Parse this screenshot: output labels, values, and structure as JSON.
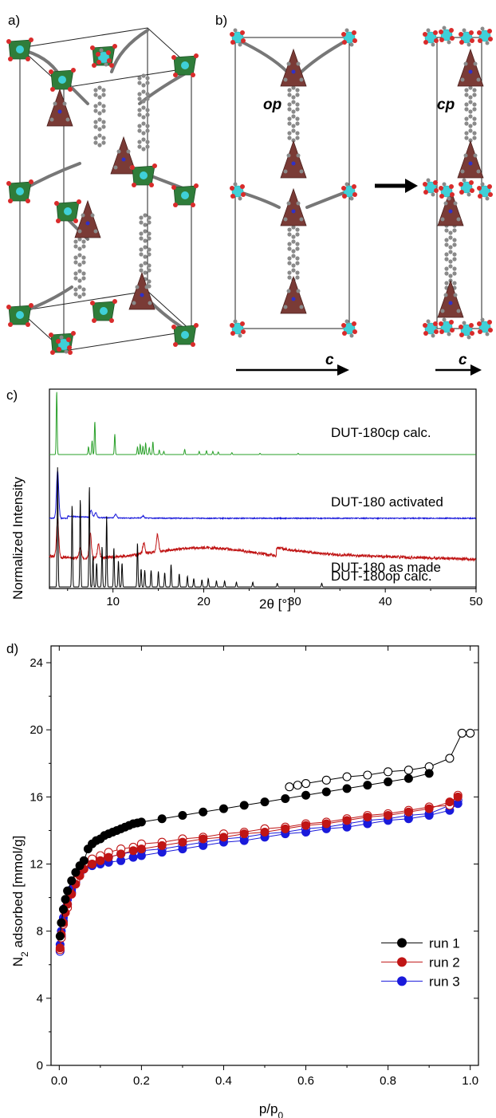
{
  "panels": {
    "a": "a)",
    "b": "b)",
    "c": "c)",
    "d": "d)"
  },
  "structure": {
    "label_op": "op",
    "label_cp": "cp",
    "axis_c_left": "c",
    "axis_c_right": "c",
    "colors": {
      "metal_node": "#3fd0d8",
      "oxygen": "#d92b2b",
      "carbon": "#8a8a8a",
      "polyhedron_green": "#2f7d3a",
      "polyhedron_brown": "#7a3b36"
    }
  },
  "chart_data": [
    {
      "type": "line",
      "title": "",
      "xlabel": "2θ [°]",
      "ylabel": "Normalized Intensity",
      "xlim": [
        3,
        50
      ],
      "xticks": [
        10,
        20,
        30,
        40,
        50
      ],
      "series": [
        {
          "name": "DUT-180cp calc.",
          "color": "#2aa02a",
          "peaks": [
            [
              3.8,
              1.0
            ],
            [
              7.3,
              0.12
            ],
            [
              7.7,
              0.22
            ],
            [
              8.0,
              0.52
            ],
            [
              10.2,
              0.32
            ],
            [
              12.7,
              0.12
            ],
            [
              13.0,
              0.16
            ],
            [
              13.3,
              0.13
            ],
            [
              13.6,
              0.18
            ],
            [
              14.0,
              0.11
            ],
            [
              14.4,
              0.2
            ],
            [
              15.1,
              0.07
            ],
            [
              15.6,
              0.05
            ],
            [
              17.9,
              0.08
            ],
            [
              19.5,
              0.05
            ],
            [
              20.3,
              0.06
            ],
            [
              21.0,
              0.05
            ],
            [
              21.6,
              0.04
            ],
            [
              23.1,
              0.03
            ],
            [
              26.2,
              0.02
            ],
            [
              30.4,
              0.02
            ]
          ]
        },
        {
          "name": "DUT-180 activated",
          "color": "#1a1adb",
          "peaks": [
            [
              3.9,
              0.85
            ],
            [
              7.6,
              0.12
            ],
            [
              8.1,
              0.09
            ],
            [
              10.3,
              0.06
            ],
            [
              13.3,
              0.04
            ]
          ]
        },
        {
          "name": "DUT-180 as made",
          "color": "#c01515",
          "peaks": [
            [
              3.9,
              0.55
            ],
            [
              6.4,
              0.15
            ],
            [
              7.5,
              0.37
            ],
            [
              8.4,
              0.2
            ],
            [
              13.4,
              0.16
            ],
            [
              14.9,
              0.25
            ]
          ],
          "background_hump": {
            "center": 20,
            "height": 0.2
          }
        },
        {
          "name": "DUT-180op calc.",
          "color": "#000000",
          "peaks": [
            [
              3.9,
              1.0
            ],
            [
              5.5,
              0.69
            ],
            [
              6.4,
              0.74
            ],
            [
              7.4,
              0.85
            ],
            [
              7.8,
              0.26
            ],
            [
              8.2,
              0.2
            ],
            [
              8.8,
              0.34
            ],
            [
              9.3,
              0.59
            ],
            [
              10.1,
              0.33
            ],
            [
              10.6,
              0.22
            ],
            [
              11.0,
              0.2
            ],
            [
              12.7,
              0.37
            ],
            [
              13.1,
              0.15
            ],
            [
              13.5,
              0.14
            ],
            [
              14.2,
              0.14
            ],
            [
              15.0,
              0.13
            ],
            [
              15.7,
              0.12
            ],
            [
              16.4,
              0.19
            ],
            [
              17.3,
              0.11
            ],
            [
              18.2,
              0.09
            ],
            [
              18.9,
              0.07
            ],
            [
              19.8,
              0.06
            ],
            [
              20.5,
              0.07
            ],
            [
              21.4,
              0.05
            ],
            [
              22.3,
              0.05
            ],
            [
              23.6,
              0.04
            ],
            [
              25.4,
              0.04
            ],
            [
              28.1,
              0.03
            ],
            [
              33.0,
              0.03
            ]
          ]
        }
      ]
    },
    {
      "type": "scatter",
      "title": "",
      "xlabel": "p/p0",
      "xlabel_main": "p/p",
      "xlabel_sub": "0",
      "ylabel": "N2 adsorbed [mmol/g]",
      "ylabel_pre": "N",
      "ylabel_sub": "2",
      "ylabel_post": " adsorbed [mmol/g]",
      "xlim": [
        -0.02,
        1.02
      ],
      "ylim": [
        0,
        25
      ],
      "xticks": [
        "0.0",
        "0.2",
        "0.4",
        "0.6",
        "0.8",
        "1.0"
      ],
      "yticks": [
        "0",
        "4",
        "8",
        "12",
        "16",
        "20",
        "24"
      ],
      "legend": "bottom-right",
      "series": [
        {
          "name": "run 1",
          "color": "#000000",
          "adsorption": [
            [
              0.002,
              7.7
            ],
            [
              0.005,
              8.5
            ],
            [
              0.01,
              9.3
            ],
            [
              0.015,
              9.9
            ],
            [
              0.02,
              10.4
            ],
            [
              0.03,
              11.0
            ],
            [
              0.04,
              11.5
            ],
            [
              0.05,
              11.9
            ],
            [
              0.06,
              12.2
            ],
            [
              0.07,
              12.9
            ],
            [
              0.08,
              13.2
            ],
            [
              0.09,
              13.4
            ],
            [
              0.1,
              13.5
            ],
            [
              0.11,
              13.7
            ],
            [
              0.12,
              13.8
            ],
            [
              0.13,
              13.9
            ],
            [
              0.14,
              14.0
            ],
            [
              0.15,
              14.1
            ],
            [
              0.16,
              14.2
            ],
            [
              0.17,
              14.3
            ],
            [
              0.18,
              14.4
            ],
            [
              0.19,
              14.45
            ],
            [
              0.2,
              14.5
            ],
            [
              0.25,
              14.7
            ],
            [
              0.3,
              14.9
            ],
            [
              0.35,
              15.1
            ],
            [
              0.4,
              15.3
            ],
            [
              0.45,
              15.5
            ],
            [
              0.5,
              15.7
            ],
            [
              0.55,
              15.9
            ],
            [
              0.6,
              16.1
            ],
            [
              0.65,
              16.3
            ],
            [
              0.7,
              16.5
            ],
            [
              0.75,
              16.7
            ],
            [
              0.8,
              16.9
            ],
            [
              0.85,
              17.1
            ],
            [
              0.9,
              17.4
            ]
          ],
          "desorption": [
            [
              1.0,
              19.8
            ],
            [
              0.98,
              19.8
            ],
            [
              0.95,
              18.3
            ],
            [
              0.9,
              17.8
            ],
            [
              0.85,
              17.6
            ],
            [
              0.8,
              17.5
            ],
            [
              0.75,
              17.3
            ],
            [
              0.7,
              17.2
            ],
            [
              0.65,
              17.0
            ],
            [
              0.6,
              16.8
            ],
            [
              0.58,
              16.7
            ],
            [
              0.56,
              16.6
            ]
          ]
        },
        {
          "name": "run 2",
          "color": "#c01515",
          "adsorption": [
            [
              0.002,
              7.0
            ],
            [
              0.005,
              7.8
            ],
            [
              0.01,
              8.5
            ],
            [
              0.015,
              9.1
            ],
            [
              0.02,
              9.6
            ],
            [
              0.03,
              10.2
            ],
            [
              0.04,
              10.8
            ],
            [
              0.05,
              11.3
            ],
            [
              0.06,
              11.7
            ],
            [
              0.08,
              12.0
            ],
            [
              0.1,
              12.2
            ],
            [
              0.12,
              12.4
            ],
            [
              0.15,
              12.6
            ],
            [
              0.18,
              12.8
            ],
            [
              0.2,
              12.9
            ],
            [
              0.25,
              13.1
            ],
            [
              0.3,
              13.3
            ],
            [
              0.35,
              13.5
            ],
            [
              0.4,
              13.6
            ],
            [
              0.45,
              13.8
            ],
            [
              0.5,
              13.9
            ],
            [
              0.55,
              14.1
            ],
            [
              0.6,
              14.3
            ],
            [
              0.65,
              14.4
            ],
            [
              0.7,
              14.6
            ],
            [
              0.75,
              14.8
            ],
            [
              0.8,
              14.9
            ],
            [
              0.85,
              15.1
            ],
            [
              0.9,
              15.3
            ],
            [
              0.95,
              15.7
            ],
            [
              0.97,
              16.0
            ]
          ],
          "desorption": [
            [
              0.97,
              16.1
            ],
            [
              0.95,
              15.5
            ],
            [
              0.9,
              15.4
            ],
            [
              0.85,
              15.2
            ],
            [
              0.8,
              15.0
            ],
            [
              0.75,
              14.9
            ],
            [
              0.7,
              14.7
            ],
            [
              0.65,
              14.5
            ],
            [
              0.6,
              14.4
            ],
            [
              0.55,
              14.2
            ],
            [
              0.5,
              14.1
            ],
            [
              0.45,
              13.9
            ],
            [
              0.4,
              13.8
            ],
            [
              0.35,
              13.6
            ],
            [
              0.3,
              13.5
            ],
            [
              0.25,
              13.3
            ],
            [
              0.2,
              13.2
            ],
            [
              0.18,
              13.0
            ],
            [
              0.15,
              12.9
            ],
            [
              0.12,
              12.7
            ],
            [
              0.1,
              12.5
            ],
            [
              0.08,
              12.3
            ],
            [
              0.06,
              12.0
            ],
            [
              0.04,
              11.0
            ],
            [
              0.02,
              9.4
            ],
            [
              0.01,
              8.4
            ],
            [
              0.005,
              7.6
            ],
            [
              0.002,
              6.9
            ]
          ]
        },
        {
          "name": "run 3",
          "color": "#1a1adb",
          "adsorption": [
            [
              0.002,
              7.2
            ],
            [
              0.005,
              8.0
            ],
            [
              0.01,
              8.8
            ],
            [
              0.015,
              9.4
            ],
            [
              0.02,
              9.9
            ],
            [
              0.03,
              10.5
            ],
            [
              0.04,
              11.0
            ],
            [
              0.05,
              11.4
            ],
            [
              0.06,
              11.7
            ],
            [
              0.08,
              11.9
            ],
            [
              0.1,
              12.0
            ],
            [
              0.12,
              12.1
            ],
            [
              0.15,
              12.2
            ],
            [
              0.18,
              12.4
            ],
            [
              0.2,
              12.5
            ],
            [
              0.25,
              12.7
            ],
            [
              0.3,
              12.9
            ],
            [
              0.35,
              13.1
            ],
            [
              0.4,
              13.3
            ],
            [
              0.45,
              13.4
            ],
            [
              0.5,
              13.6
            ],
            [
              0.55,
              13.8
            ],
            [
              0.6,
              13.9
            ],
            [
              0.65,
              14.1
            ],
            [
              0.7,
              14.2
            ],
            [
              0.75,
              14.4
            ],
            [
              0.8,
              14.6
            ],
            [
              0.85,
              14.7
            ],
            [
              0.9,
              14.9
            ],
            [
              0.95,
              15.2
            ],
            [
              0.97,
              15.6
            ]
          ],
          "desorption": [
            [
              0.97,
              15.8
            ],
            [
              0.95,
              15.5
            ],
            [
              0.9,
              15.0
            ],
            [
              0.85,
              14.9
            ],
            [
              0.8,
              14.7
            ],
            [
              0.75,
              14.6
            ],
            [
              0.7,
              14.4
            ],
            [
              0.65,
              14.2
            ],
            [
              0.6,
              14.1
            ],
            [
              0.55,
              13.9
            ],
            [
              0.5,
              13.8
            ],
            [
              0.45,
              13.6
            ],
            [
              0.4,
              13.5
            ],
            [
              0.35,
              13.3
            ],
            [
              0.3,
              13.1
            ],
            [
              0.25,
              12.9
            ],
            [
              0.2,
              12.8
            ],
            [
              0.15,
              12.6
            ],
            [
              0.12,
              12.4
            ],
            [
              0.1,
              12.3
            ],
            [
              0.08,
              12.1
            ],
            [
              0.06,
              11.8
            ],
            [
              0.04,
              10.9
            ],
            [
              0.03,
              10.3
            ],
            [
              0.02,
              9.6
            ],
            [
              0.01,
              8.6
            ],
            [
              0.005,
              7.7
            ],
            [
              0.002,
              6.8
            ]
          ]
        }
      ]
    }
  ]
}
